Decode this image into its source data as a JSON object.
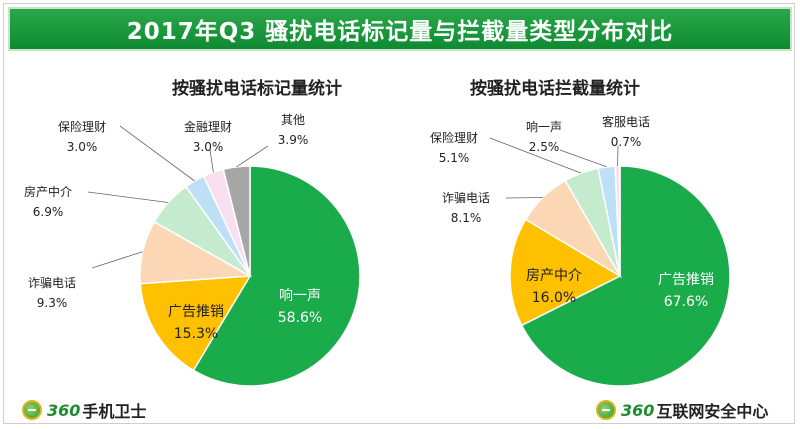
{
  "header": {
    "title": "2017年Q3  骚扰电话标记量与拦截量类型分布对比"
  },
  "footer": {
    "left_logo_num": "360",
    "left_logo_text": "手机卫士",
    "right_logo_num": "360",
    "right_logo_text": "互联网安全中心"
  },
  "colors": {
    "title_bar": "#1a9a3c",
    "green": "#1aab4b",
    "orange": "#ffc000",
    "peach": "#fcd7b6",
    "mint": "#c5ebcf",
    "light_blue": "#bde0f7",
    "pink": "#f8e0f0",
    "gray": "#a6a6a6"
  },
  "chart_data": [
    {
      "type": "pie",
      "title": "按骚扰电话标记量统计",
      "slices": [
        {
          "label": "响一声",
          "value": 58.6,
          "display": "58.6%",
          "color": "#1aab4b"
        },
        {
          "label": "广告推销",
          "value": 15.3,
          "display": "15.3%",
          "color": "#ffc000"
        },
        {
          "label": "诈骗电话",
          "value": 9.3,
          "display": "9.3%",
          "color": "#fcd7b6"
        },
        {
          "label": "房产中介",
          "value": 6.9,
          "display": "6.9%",
          "color": "#c5ebcf"
        },
        {
          "label": "保险理财",
          "value": 3.0,
          "display": "3.0%",
          "color": "#bde0f7"
        },
        {
          "label": "金融理财",
          "value": 3.0,
          "display": "3.0%",
          "color": "#f8e0f0"
        },
        {
          "label": "其他",
          "value": 3.9,
          "display": "3.9%",
          "color": "#a6a6a6"
        }
      ]
    },
    {
      "type": "pie",
      "title": "按骚扰电话拦截量统计",
      "slices": [
        {
          "label": "广告推销",
          "value": 67.6,
          "display": "67.6%",
          "color": "#1aab4b"
        },
        {
          "label": "房产中介",
          "value": 16.0,
          "display": "16.0%",
          "color": "#ffc000"
        },
        {
          "label": "诈骗电话",
          "value": 8.1,
          "display": "8.1%",
          "color": "#fcd7b6"
        },
        {
          "label": "保险理财",
          "value": 5.1,
          "display": "5.1%",
          "color": "#c5ebcf"
        },
        {
          "label": "响一声",
          "value": 2.5,
          "display": "2.5%",
          "color": "#bde0f7"
        },
        {
          "label": "客服电话",
          "value": 0.7,
          "display": "0.7%",
          "color": "#f8e0f0"
        }
      ]
    }
  ]
}
